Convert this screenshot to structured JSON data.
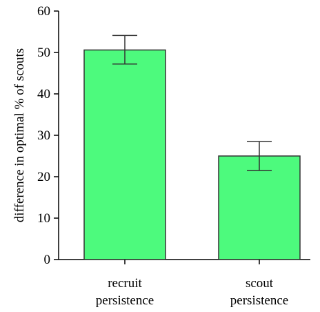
{
  "chart_data": {
    "type": "bar",
    "categories": [
      [
        "recruit",
        "persistence"
      ],
      [
        "scout",
        "persistence"
      ]
    ],
    "values": [
      50.6,
      25.0
    ],
    "error_low": [
      47.2,
      21.5
    ],
    "error_high": [
      54.1,
      28.5
    ],
    "ylabel": "difference in optimal % of scouts",
    "xlabel": "",
    "ylim": [
      0,
      60
    ],
    "yticks": [
      0,
      10,
      20,
      30,
      40,
      50,
      60
    ],
    "grid": false,
    "bar_color": "#4dfa7d",
    "bar_edge_color": "#333333"
  }
}
